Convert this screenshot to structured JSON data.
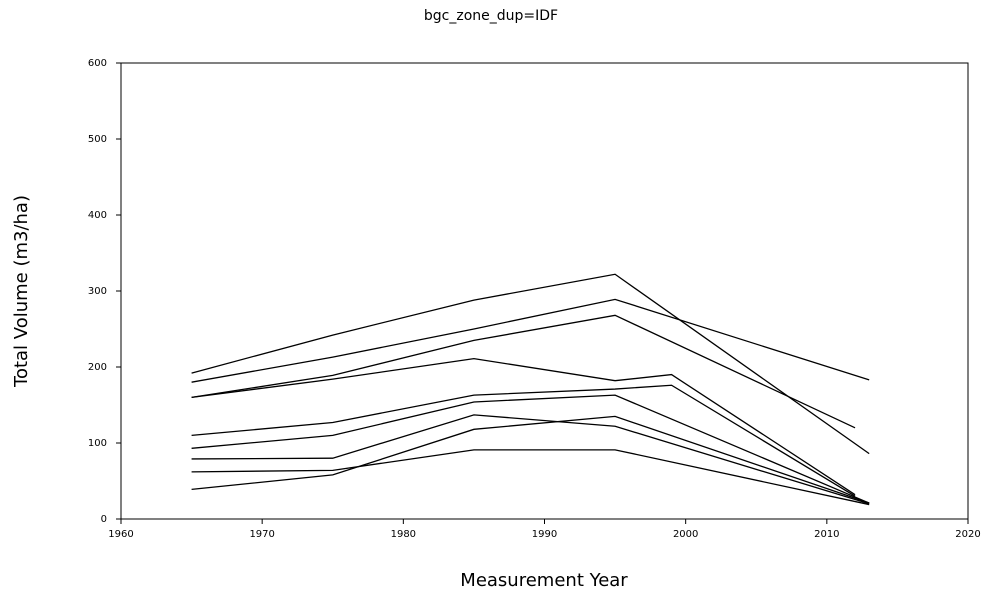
{
  "chart_data": {
    "type": "line",
    "title": "bgc_zone_dup=IDF",
    "x_label": "Measurement Year",
    "y_label": "Total Volume (m3/ha)",
    "xlim": [
      1960,
      2020
    ],
    "xticks": [
      1960,
      1970,
      1980,
      1990,
      2000,
      2010,
      2020
    ],
    "ylim": [
      0,
      600
    ],
    "yticks": [
      0,
      100,
      200,
      300,
      400,
      500,
      600
    ],
    "series": [
      {
        "color": "#000000",
        "x": [
          1965,
          1975,
          1985,
          1995,
          2013
        ],
        "values": [
          192,
          242,
          288,
          322,
          86
        ]
      },
      {
        "color": "#000000",
        "x": [
          1965,
          1975,
          1985,
          1995,
          2013
        ],
        "values": [
          180,
          213,
          250,
          289,
          183
        ]
      },
      {
        "color": "#000000",
        "x": [
          1965,
          1975,
          1985,
          1995,
          2012
        ],
        "values": [
          160,
          189,
          235,
          268,
          120
        ]
      },
      {
        "color": "#000000",
        "x": [
          1965,
          1975,
          1985,
          1995,
          1999,
          2012
        ],
        "values": [
          160,
          184,
          211,
          182,
          190,
          32
        ]
      },
      {
        "color": "#000000",
        "x": [
          1965,
          1975,
          1985,
          1995,
          1999,
          2012
        ],
        "values": [
          110,
          127,
          163,
          171,
          176,
          30
        ]
      },
      {
        "color": "#000000",
        "x": [
          1965,
          1975,
          1985,
          1995,
          2013
        ],
        "values": [
          93,
          110,
          154,
          163,
          21
        ]
      },
      {
        "color": "#000000",
        "x": [
          1965,
          1975,
          1985,
          1995,
          2013
        ],
        "values": [
          79,
          80,
          137,
          122,
          20
        ]
      },
      {
        "color": "#000000",
        "x": [
          1965,
          1975,
          1985,
          1995,
          2013
        ],
        "values": [
          39,
          58,
          118,
          135,
          21
        ]
      },
      {
        "color": "#000000",
        "x": [
          1965,
          1975,
          1985,
          1995,
          2013
        ],
        "values": [
          62,
          64,
          91,
          91,
          19
        ]
      }
    ]
  }
}
